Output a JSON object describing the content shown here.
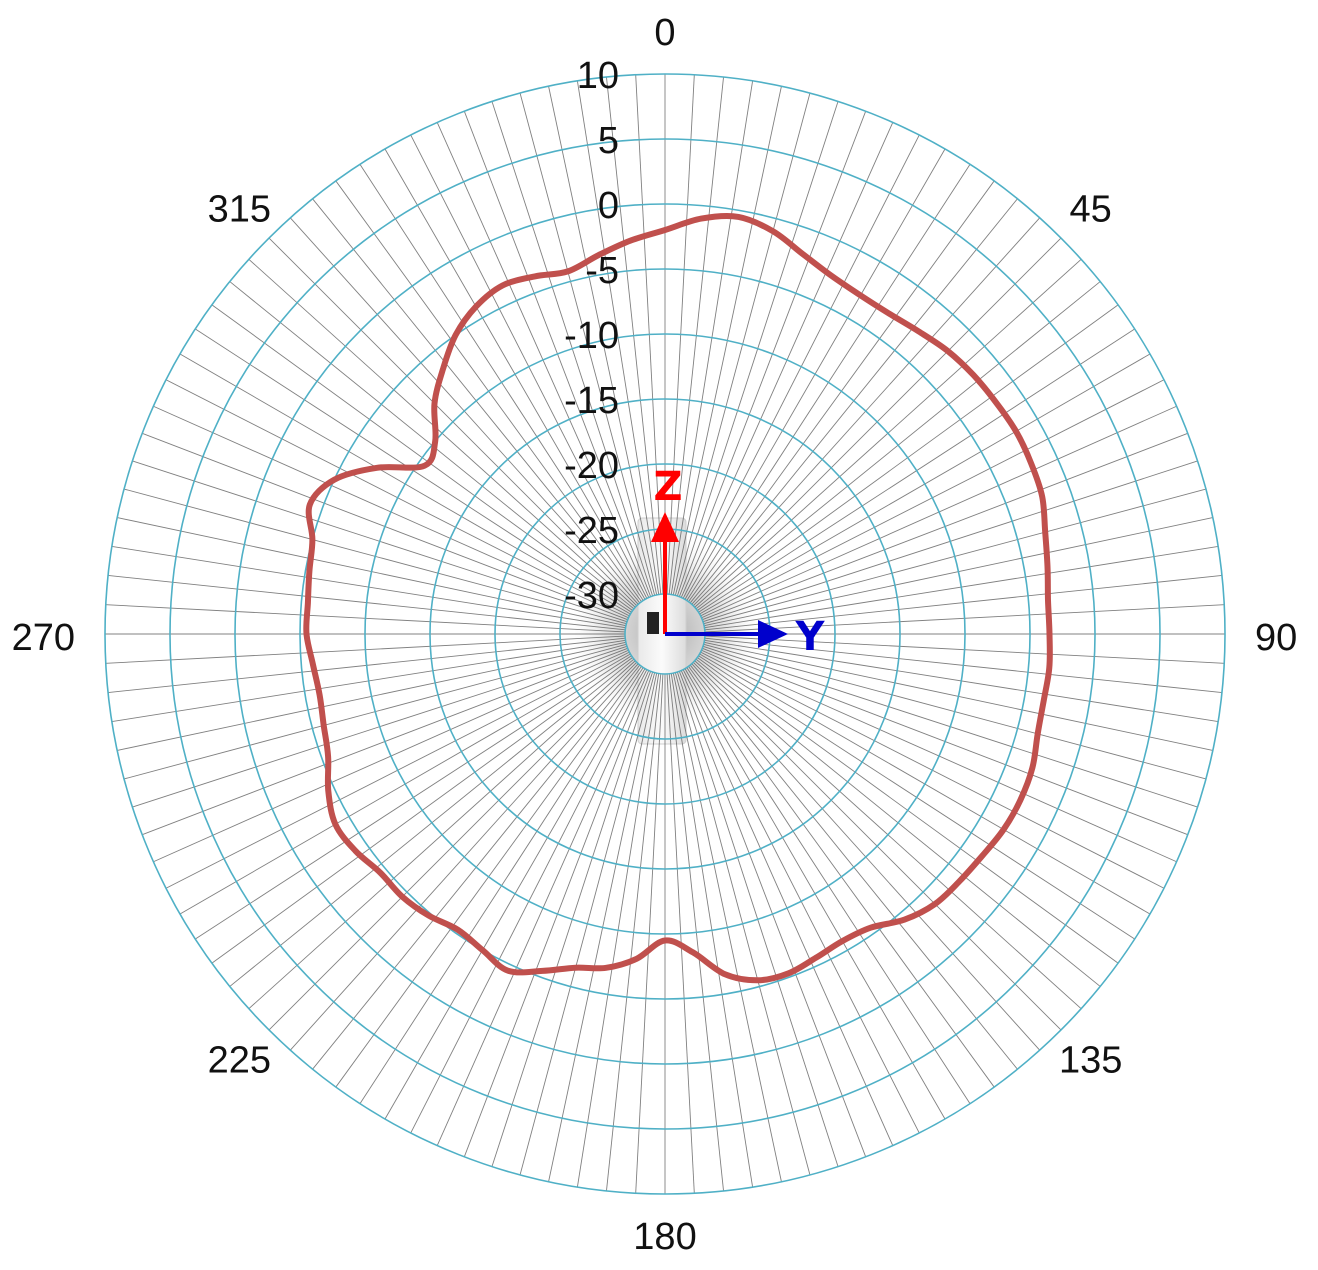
{
  "colors": {
    "ring": "#4fb0c6",
    "spoke": "#555555",
    "trace": "#c0504d",
    "z_axis": "#ff0000",
    "y_axis": "#0000cc",
    "background": "#ffffff"
  },
  "chart_data": {
    "type": "polar-line",
    "title": "",
    "angle_unit": "deg",
    "angle_direction": "clockwise",
    "angle_zero": "top",
    "angle_labels": [
      "0",
      "45",
      "90",
      "135",
      "180",
      "225",
      "270",
      "315"
    ],
    "radial_ticks": [
      10,
      5,
      0,
      -5,
      -10,
      -15,
      -20,
      -25,
      -30
    ],
    "radial_tick_labels": [
      "10",
      "5",
      "0",
      "-5",
      "-10",
      "-15",
      "-20",
      "-25",
      "-30"
    ],
    "rlim": [
      -30,
      10
    ],
    "spoke_step_deg": 3,
    "grid": true,
    "axis_indicators": {
      "z_label": "Z",
      "y_label": "Y"
    },
    "series": [
      {
        "color": "#c0504d",
        "angles": [
          0,
          5,
          10,
          15,
          20,
          25,
          30,
          35,
          40,
          45,
          50,
          55,
          60,
          65,
          70,
          75,
          80,
          85,
          90,
          95,
          100,
          105,
          110,
          115,
          120,
          125,
          130,
          135,
          140,
          145,
          150,
          155,
          160,
          165,
          170,
          175,
          180,
          185,
          190,
          195,
          200,
          205,
          210,
          215,
          220,
          225,
          230,
          235,
          240,
          245,
          250,
          255,
          260,
          265,
          270,
          275,
          280,
          285,
          290,
          295,
          300,
          305,
          310,
          315,
          320,
          325,
          330,
          335,
          340,
          345,
          350,
          355
        ],
        "values": [
          -2,
          -1,
          -0.5,
          -1,
          -2,
          -2.7,
          -3,
          -3,
          -2.7,
          -2.3,
          -2.1,
          -2,
          -1.9,
          -2,
          -2.2,
          -2.8,
          -3.2,
          -3.5,
          -3.5,
          -3.4,
          -3.5,
          -3.4,
          -3,
          -2.9,
          -3,
          -3.3,
          -3.5,
          -3.7,
          -4.4,
          -5.5,
          -5.8,
          -5.6,
          -5.3,
          -5.5,
          -6.5,
          -8.5,
          -9.5,
          -8,
          -7,
          -6.5,
          -5.5,
          -4.5,
          -5,
          -5.3,
          -4.8,
          -4.5,
          -4.5,
          -4,
          -3.8,
          -4.5,
          -5.5,
          -5.9,
          -6.1,
          -5.9,
          -5.5,
          -5.5,
          -5.3,
          -5,
          -4,
          -5,
          -7.5,
          -10.5,
          -10,
          -8,
          -6.5,
          -5,
          -4,
          -3.5,
          -3.8,
          -4.2,
          -3.5,
          -2.7
        ]
      }
    ]
  }
}
